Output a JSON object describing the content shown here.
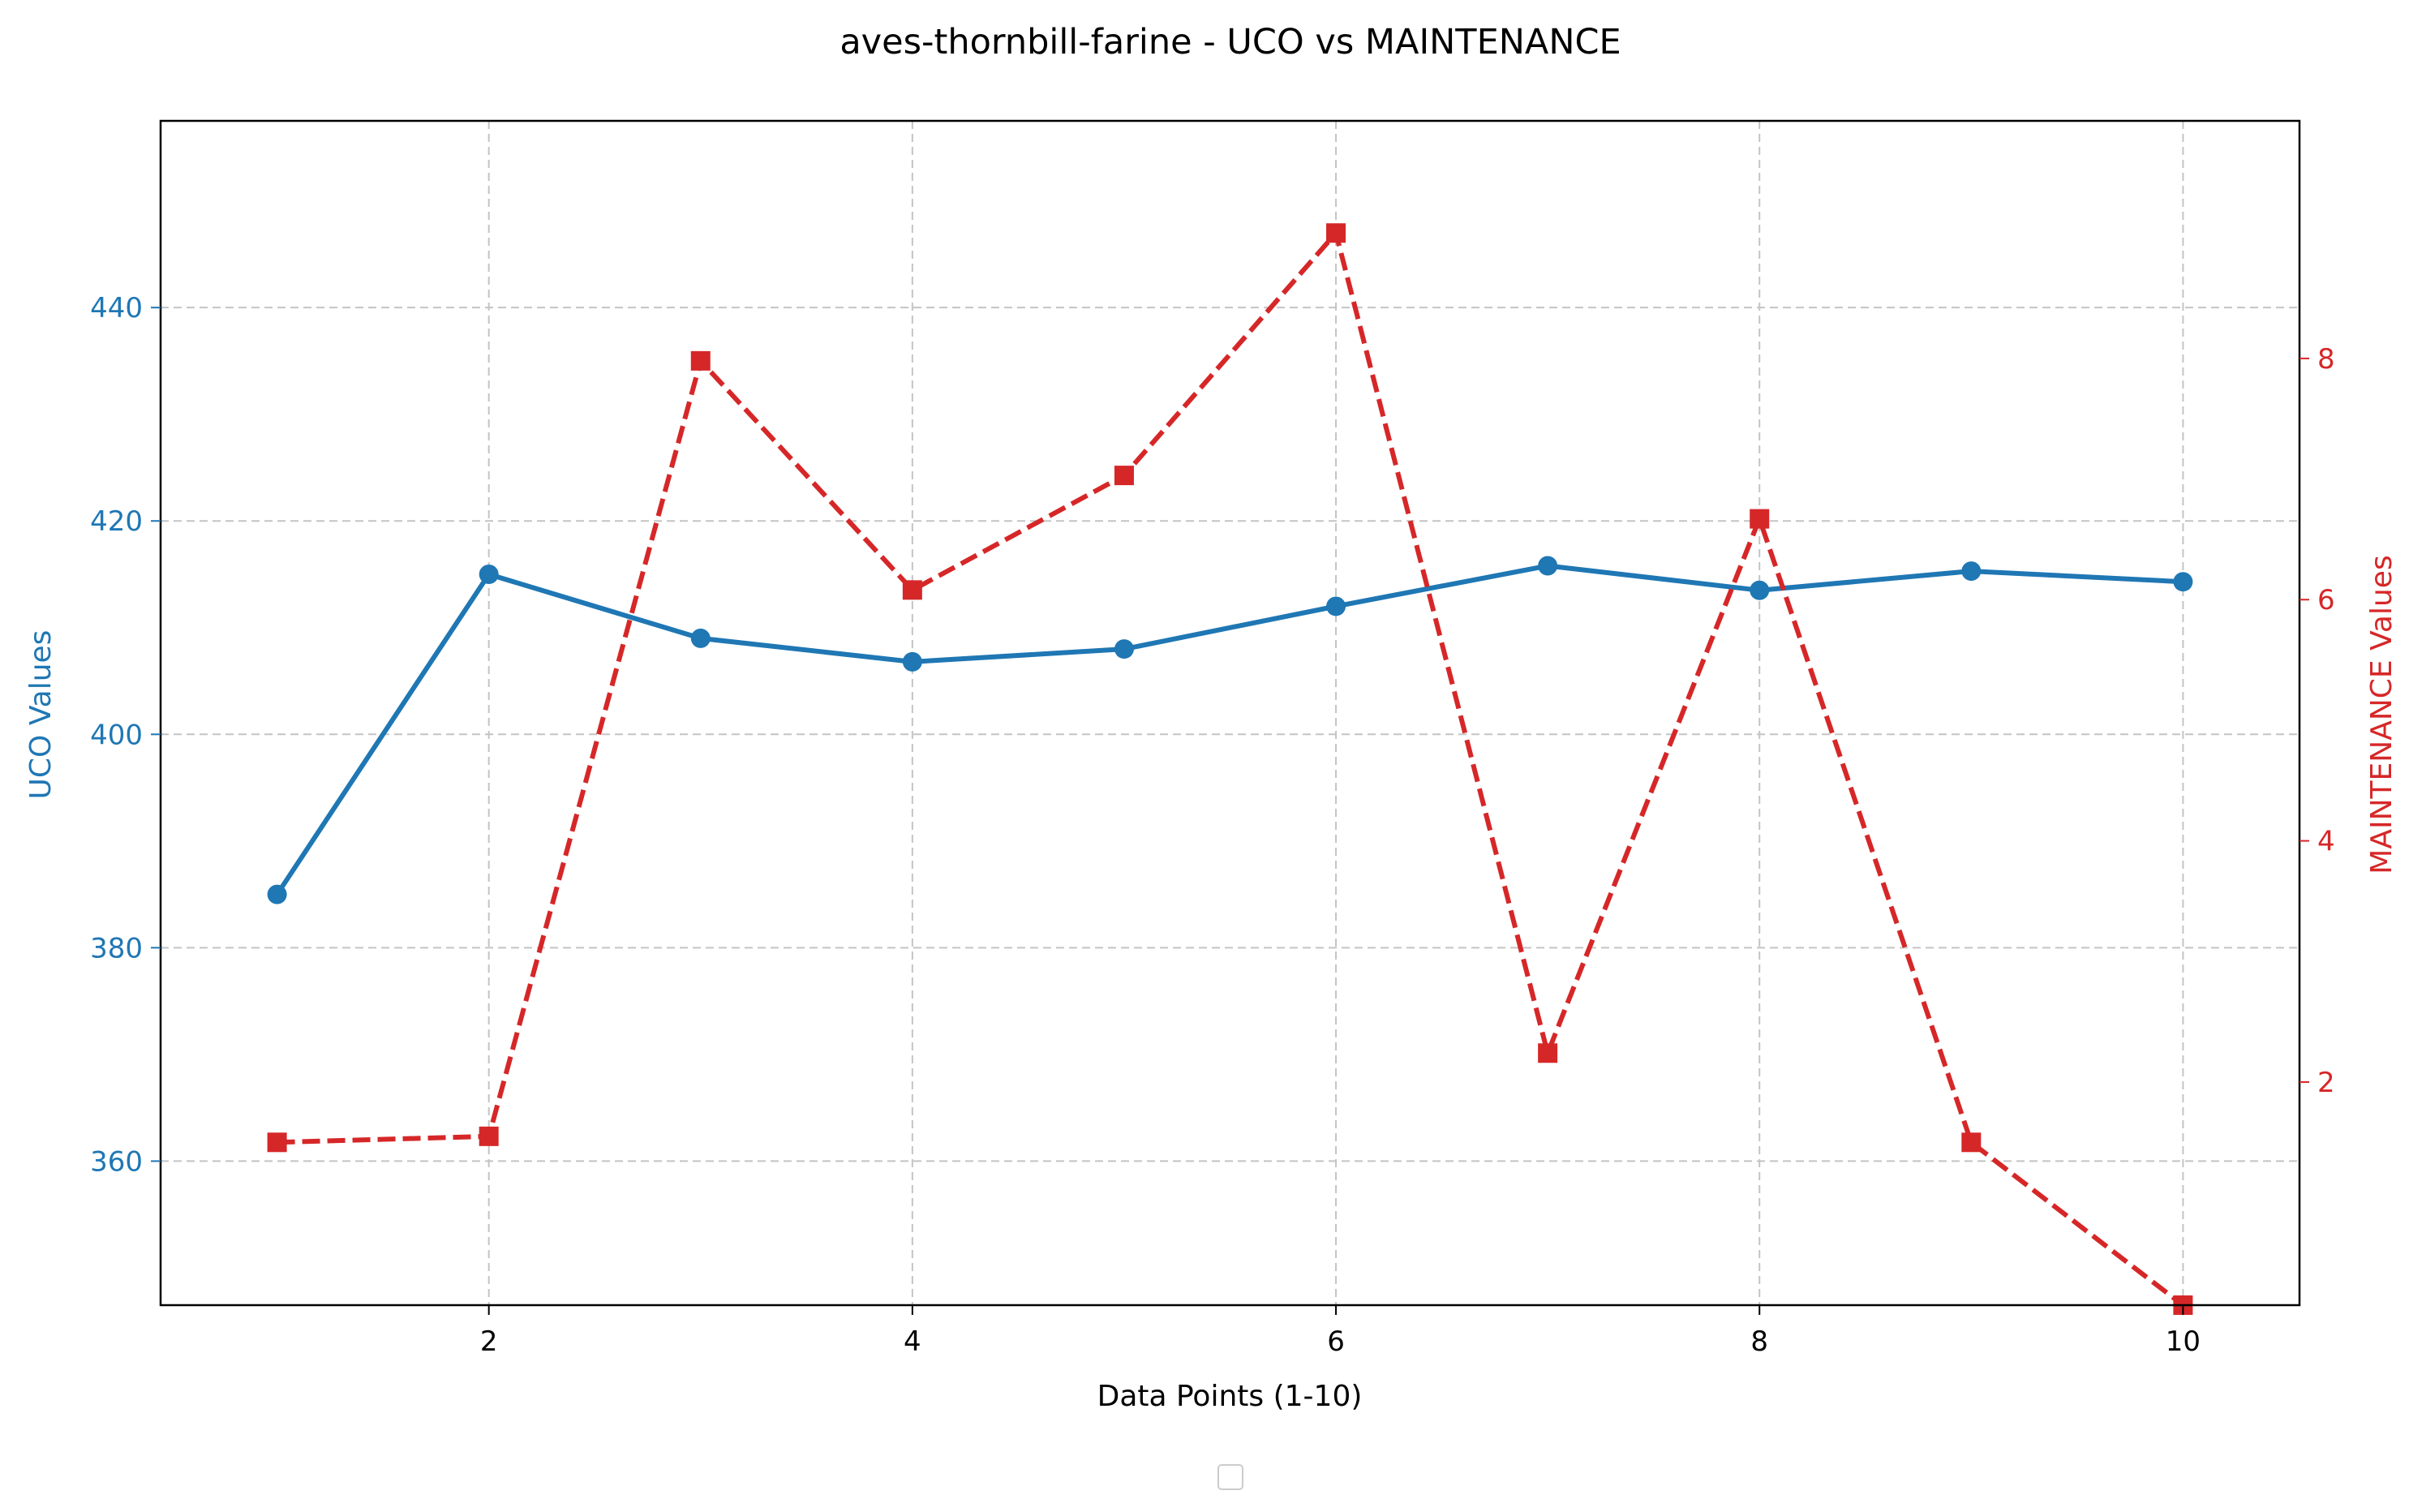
{
  "chart_data": {
    "type": "line",
    "title": "aves-thornbill-farine - UCO vs MAINTENANCE",
    "xlabel": "Data Points (1-10)",
    "ylabel_left": "UCO Values",
    "ylabel_right": "MAINTENANCE Values",
    "x": [
      1,
      2,
      3,
      4,
      5,
      6,
      7,
      8,
      9,
      10
    ],
    "xlim": [
      0.45,
      10.55
    ],
    "ylim_left": [
      346.5,
      457.5
    ],
    "ylim_right": [
      0.15,
      9.97
    ],
    "x_ticks": [
      2,
      4,
      6,
      8,
      10
    ],
    "y_ticks_left": [
      360,
      380,
      400,
      420,
      440
    ],
    "y_ticks_right": [
      2,
      4,
      6,
      8
    ],
    "grid": true,
    "legend": "bottom-center (empty)",
    "series": [
      {
        "name": "UCO",
        "axis": "left",
        "color": "#1f77b4",
        "line_style": "solid",
        "marker": "circle",
        "values": [
          385,
          415,
          409,
          406.8,
          408,
          412,
          415.8,
          413.5,
          415.3,
          414.3
        ]
      },
      {
        "name": "MAINTENANCE",
        "axis": "right",
        "color": "#d62728",
        "line_style": "dashed",
        "marker": "square",
        "values": [
          1.5,
          1.55,
          7.98,
          6.08,
          7.03,
          9.04,
          2.24,
          6.67,
          1.5,
          0.15
        ]
      }
    ]
  }
}
